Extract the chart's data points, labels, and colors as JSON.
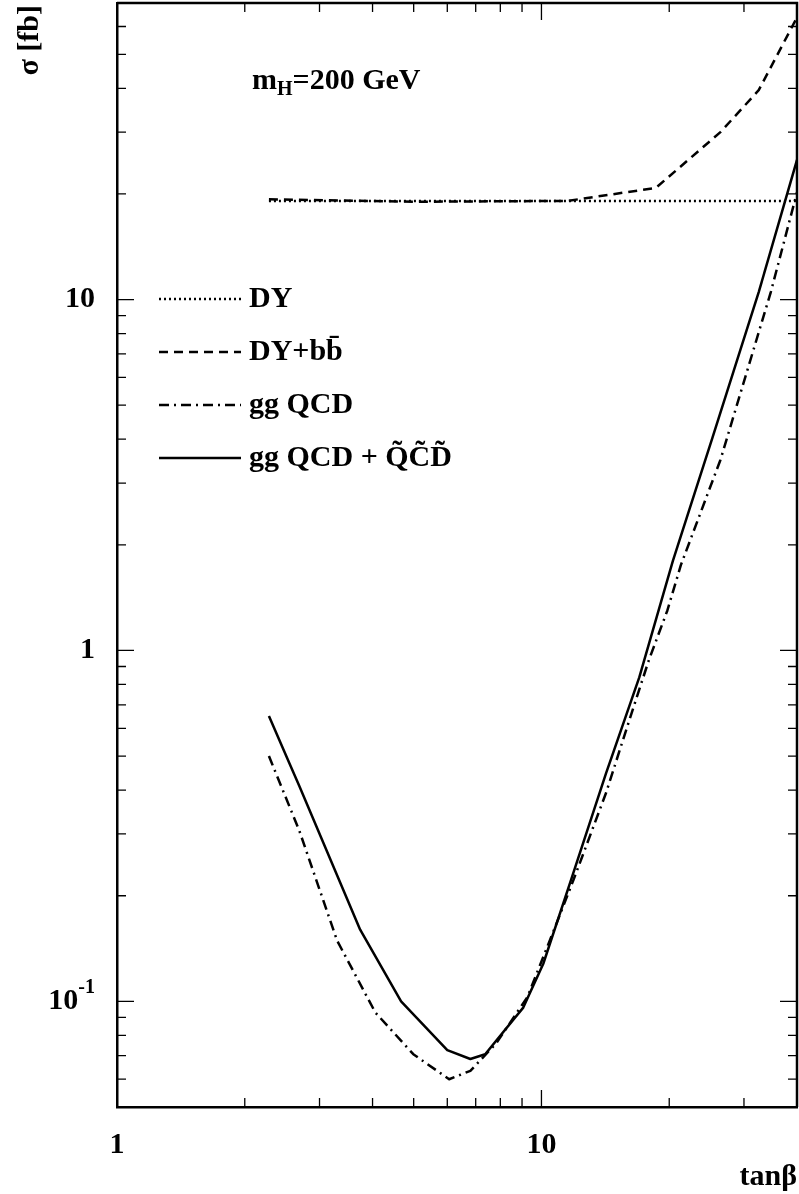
{
  "chart_data": {
    "type": "line",
    "xlabel": "tanβ",
    "ylabel": "σ [fb]",
    "log": "xy",
    "grid": false,
    "legend": "top left",
    "marker": "none",
    "xlim": [
      1,
      40
    ],
    "ylim": [
      0.05,
      70
    ],
    "xticks": [
      1,
      {
        "value": 2,
        "label": null
      },
      {
        "value": 3,
        "label": null
      },
      {
        "value": 4,
        "label": null
      },
      {
        "value": 5,
        "label": null
      },
      {
        "value": 6,
        "label": null
      },
      {
        "value": 7,
        "label": null
      },
      {
        "value": 8,
        "label": null
      },
      {
        "value": 9,
        "label": null
      },
      10,
      {
        "value": 20,
        "label": null
      },
      {
        "value": 30,
        "label": null
      }
    ],
    "yticks": [
      {
        "value": 0.06,
        "label": null
      },
      {
        "value": 0.07,
        "label": null
      },
      {
        "value": 0.08,
        "label": null
      },
      {
        "value": 0.09,
        "label": null
      },
      {
        "value": 0.1,
        "label": "10$^{-1}$"
      },
      {
        "value": 0.2,
        "label": null
      },
      {
        "value": 0.3,
        "label": null
      },
      {
        "value": 0.4,
        "label": null
      },
      {
        "value": 0.5,
        "label": null
      },
      {
        "value": 0.6,
        "label": null
      },
      {
        "value": 0.7,
        "label": null
      },
      {
        "value": 0.8,
        "label": null
      },
      {
        "value": 0.9,
        "label": null
      },
      1,
      {
        "value": 2,
        "label": null
      },
      {
        "value": 3,
        "label": null
      },
      {
        "value": 4,
        "label": null
      },
      {
        "value": 5,
        "label": null
      },
      {
        "value": 6,
        "label": null
      },
      {
        "value": 7,
        "label": null
      },
      {
        "value": 8,
        "label": null
      },
      {
        "value": 9,
        "label": null
      },
      10,
      {
        "value": 20,
        "label": null
      },
      {
        "value": 30,
        "label": null
      },
      {
        "value": 40,
        "label": null
      },
      {
        "value": 50,
        "label": null
      },
      {
        "value": 60,
        "label": null
      }
    ],
    "annotations": [
      "m$_{H}$=200 GeV"
    ],
    "series": [
      {
        "name": "DY",
        "color": "#000000",
        "line_style": "dotted",
        "x": [
          2.28,
          40
        ],
        "values": [
          19.1,
          19.1
        ]
      },
      {
        "name": "DY+bb̄",
        "color": "#000000",
        "line_style": "dashed",
        "x": [
          2.28,
          5,
          11.5,
          18.6,
          26.4,
          32.5,
          40
        ],
        "values": [
          19.3,
          19,
          19.1,
          20.8,
          30,
          39.5,
          63.7
        ]
      },
      {
        "name": "gg QCD",
        "color": "#000000",
        "line_style": "dashdot",
        "x": [
          2.28,
          2.69,
          3.3,
          4.06,
          4.99,
          6.06,
          6.8,
          7.83,
          9.27,
          10.9,
          11.9,
          14.2,
          16.1,
          17.9,
          19.8,
          21.3,
          26.4,
          34.7,
          40
        ],
        "values": [
          0.5,
          0.306,
          0.149,
          0.093,
          0.0707,
          0.06,
          0.0634,
          0.076,
          0.103,
          0.169,
          0.222,
          0.393,
          0.632,
          0.937,
          1.3,
          1.75,
          3.49,
          10.5,
          20.2
        ]
      },
      {
        "name": "gg QCD + Q̃C̃D̃",
        "color": "#000000",
        "line_style": "solid",
        "x": [
          2.28,
          2.69,
          3.74,
          4.67,
          6.0,
          6.8,
          7.37,
          9.06,
          10.1,
          11.8,
          14.2,
          17.0,
          20.4,
          25.3,
          32.5,
          40
        ],
        "values": [
          0.65,
          0.41,
          0.16,
          0.1,
          0.0726,
          0.0685,
          0.0707,
          0.096,
          0.128,
          0.226,
          0.447,
          0.838,
          1.8,
          4.05,
          10.5,
          25
        ]
      }
    ]
  }
}
